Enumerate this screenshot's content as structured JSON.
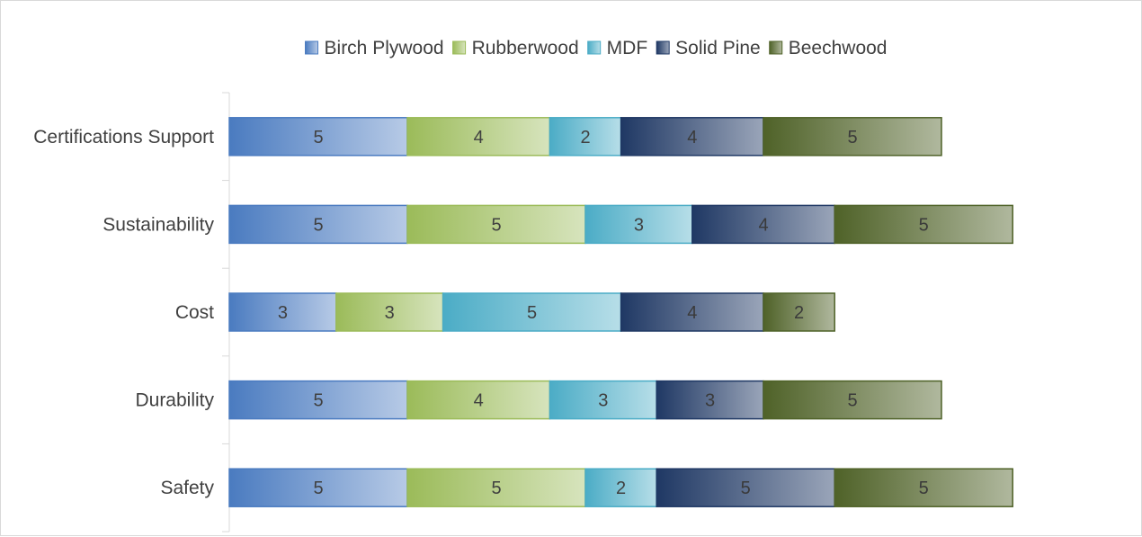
{
  "chart_data": {
    "type": "bar",
    "orientation": "horizontal",
    "stacked": true,
    "title": "",
    "xlabel": "",
    "ylabel": "",
    "categories": [
      "Certifications Support",
      "Sustainability",
      "Cost",
      "Durability",
      "Safety"
    ],
    "series": [
      {
        "name": "Birch Plywood",
        "color": "#4a7bc0",
        "values": [
          5,
          5,
          3,
          5,
          5
        ]
      },
      {
        "name": "Rubberwood",
        "color": "#9bbb59",
        "values": [
          4,
          5,
          3,
          4,
          5
        ]
      },
      {
        "name": "MDF",
        "color": "#4bacc6",
        "values": [
          2,
          3,
          5,
          3,
          2
        ]
      },
      {
        "name": "Solid Pine",
        "color": "#1f3864",
        "values": [
          4,
          4,
          4,
          3,
          5
        ]
      },
      {
        "name": "Beechwood",
        "color": "#4f6228",
        "values": [
          5,
          5,
          2,
          5,
          5
        ]
      }
    ],
    "data_labels": true,
    "legend_position": "top",
    "grid": false
  }
}
